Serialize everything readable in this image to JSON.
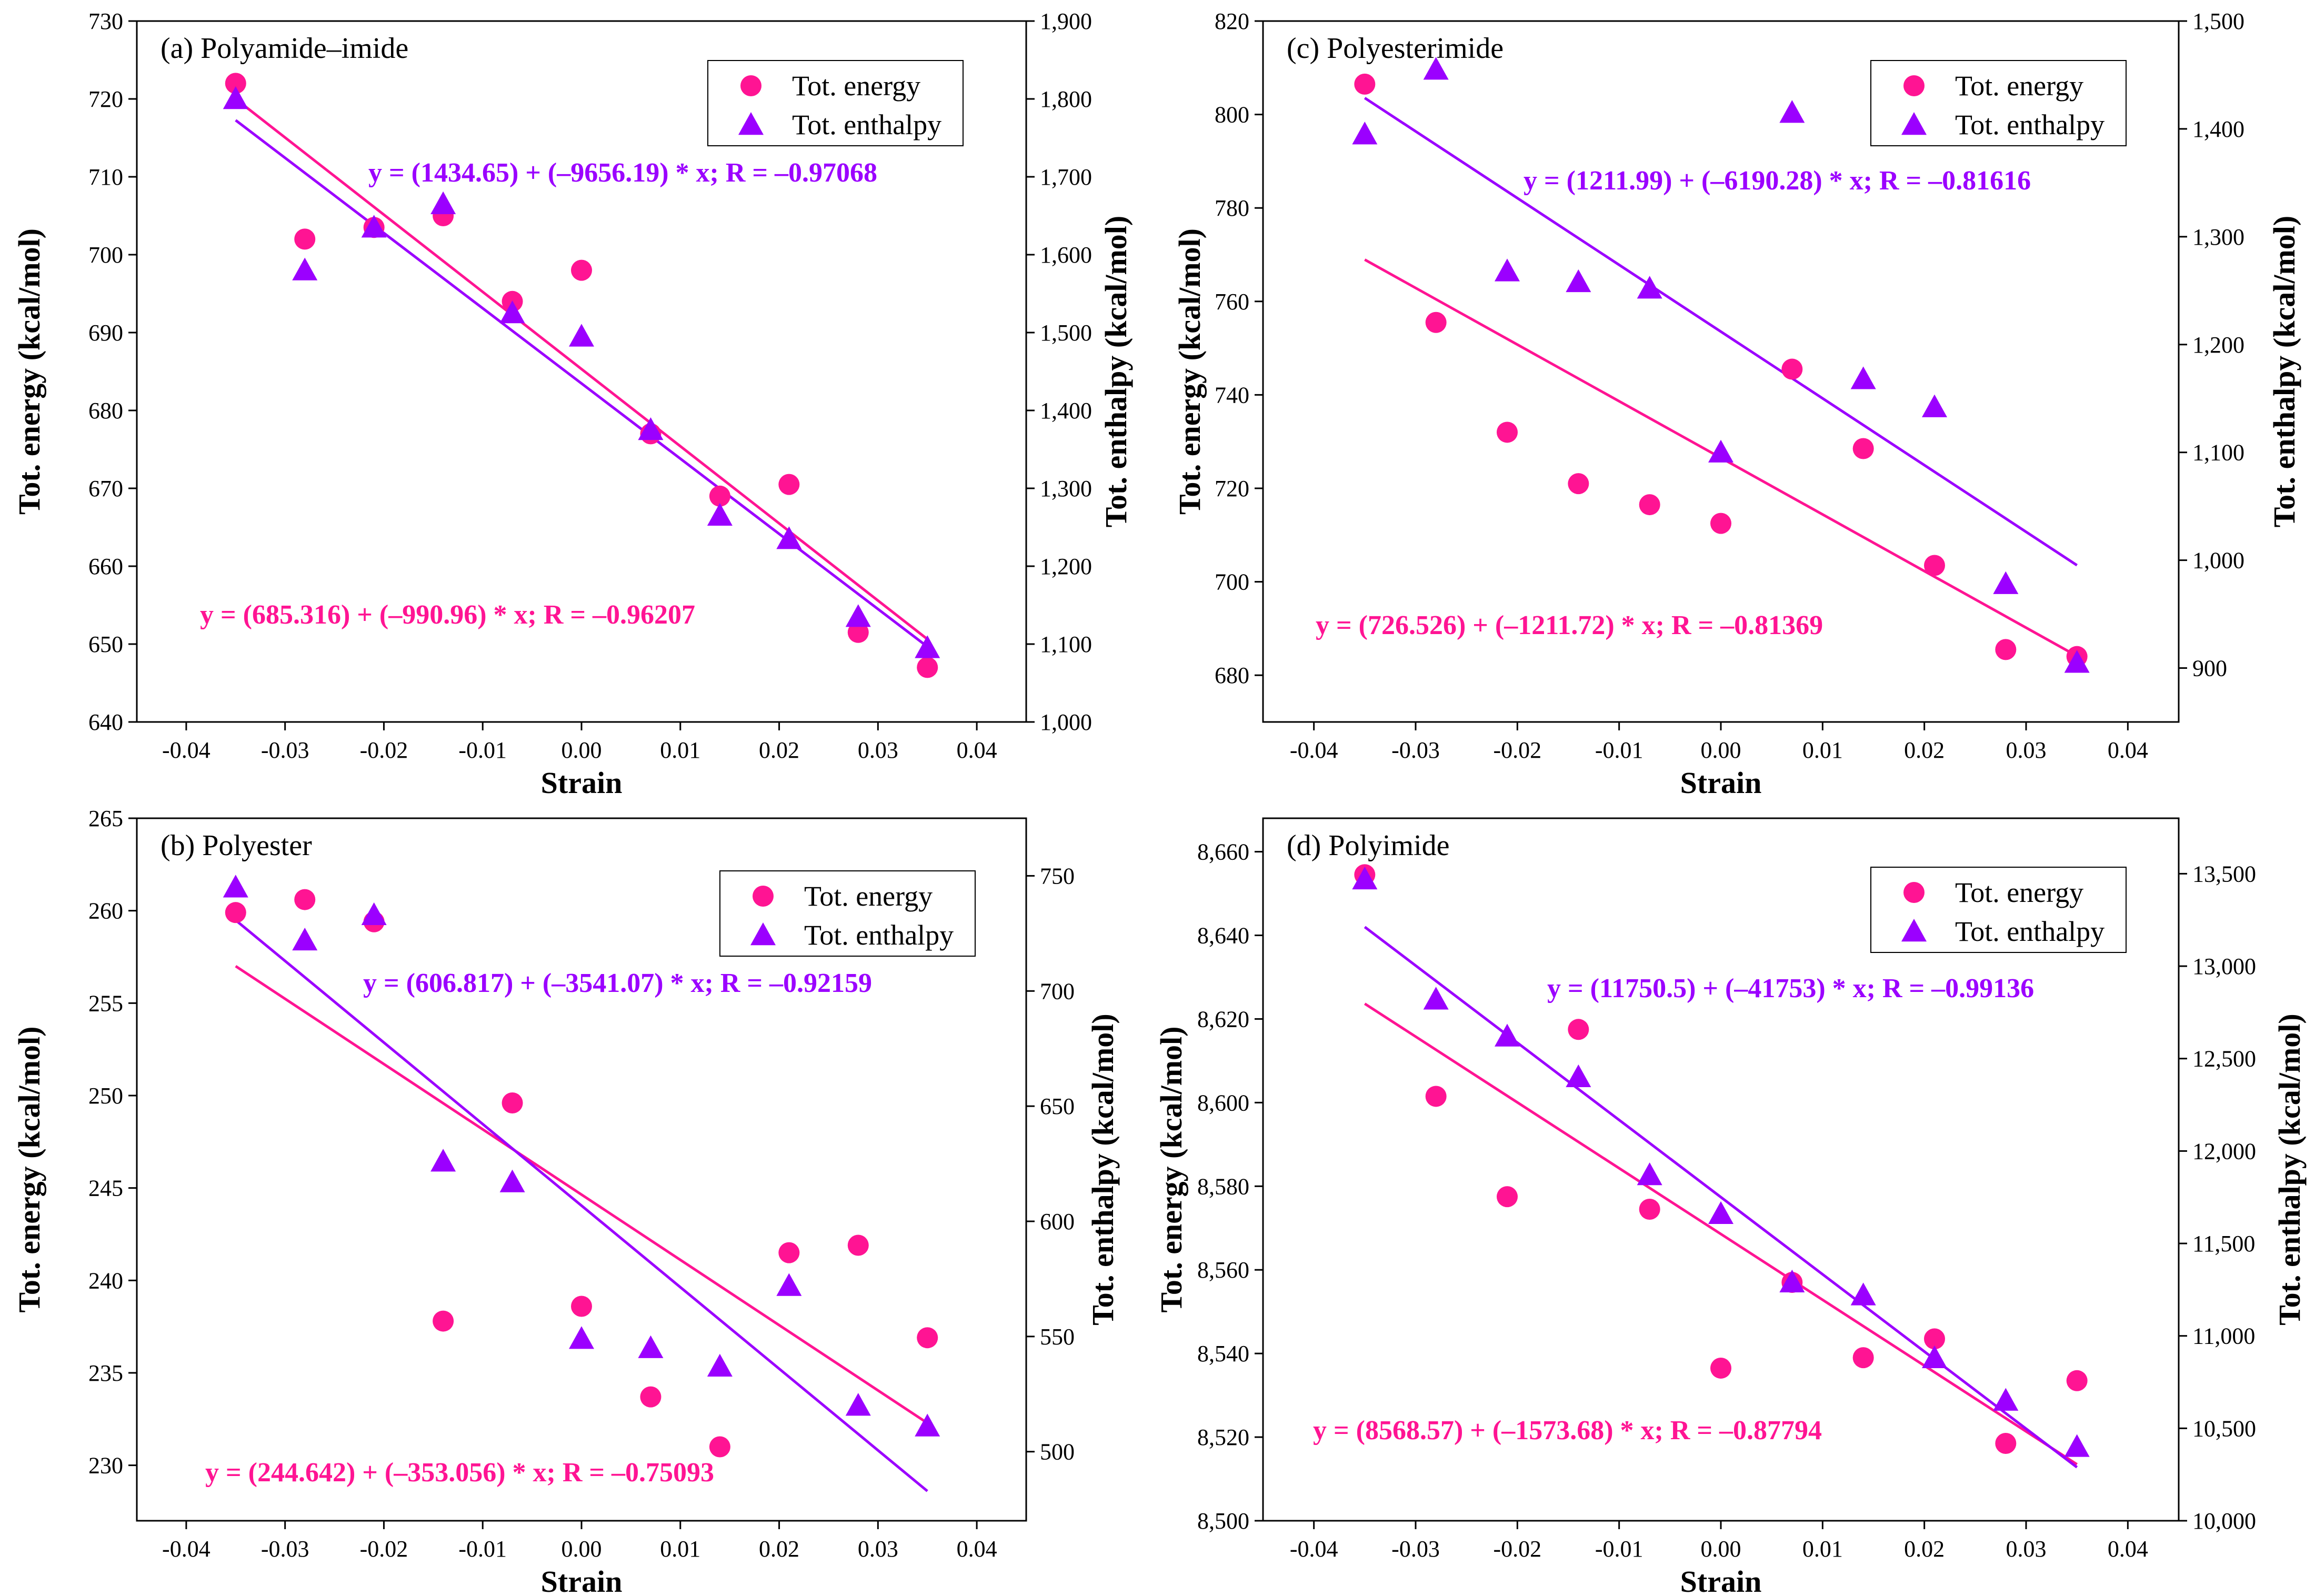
{
  "figure": {
    "colors": {
      "energy": "#ff1493",
      "enthalpy": "#9b00ff",
      "axis": "#000000"
    },
    "legend": {
      "energy": "Tot. energy",
      "enthalpy": "Tot. enthalpy",
      "placement": "top-right"
    }
  },
  "chart_data": [
    {
      "id": "a",
      "type": "scatter",
      "title": "(a) Polyamide–imide",
      "xlabel": "Strain",
      "ylabel": "Tot. energy (kcal/mol)",
      "y2label": "Tot. enthalpy (kcal/mol)",
      "xlim": [
        -0.045,
        0.045
      ],
      "ylim": [
        640,
        730
      ],
      "y2lim": [
        1000,
        1900
      ],
      "xticks": [
        -0.04,
        -0.03,
        -0.02,
        -0.01,
        0,
        0.01,
        0.02,
        0.03,
        0.04
      ],
      "xtick_labels": [
        "-0.04",
        "-0.03",
        "-0.02",
        "-0.01",
        "0.00",
        "0.01",
        "0.02",
        "0.03",
        "0.04"
      ],
      "yticks": [
        640,
        650,
        660,
        670,
        680,
        690,
        700,
        710,
        720,
        730
      ],
      "ytick_labels": [
        "640",
        "650",
        "660",
        "670",
        "680",
        "690",
        "700",
        "710",
        "720",
        "730"
      ],
      "y2ticks": [
        1000,
        1100,
        1200,
        1300,
        1400,
        1500,
        1600,
        1700,
        1800,
        1900
      ],
      "y2tick_labels": [
        "1,000",
        "1,100",
        "1,200",
        "1,300",
        "1,400",
        "1,500",
        "1,600",
        "1,700",
        "1,800",
        "1,900"
      ],
      "x": [
        -0.035,
        -0.028,
        -0.021,
        -0.014,
        -0.007,
        0.0,
        0.007,
        0.014,
        0.021,
        0.028,
        0.035
      ],
      "series": [
        {
          "name": "Tot. energy",
          "axis": "left",
          "marker": "circle",
          "values": [
            722,
            702,
            703.5,
            705,
            694,
            698,
            677,
            669,
            670.5,
            651.5,
            647
          ]
        },
        {
          "name": "Tot. enthalpy",
          "axis": "right",
          "marker": "triangle",
          "values": [
            1800,
            1580,
            1635,
            1665,
            1525,
            1495,
            1375,
            1265,
            1235,
            1135,
            1095
          ]
        }
      ],
      "fits": [
        {
          "series": "Tot. energy",
          "axis": "left",
          "intercept": 685.316,
          "slope": -990.96,
          "range": [
            -0.035,
            0.035
          ],
          "label": "y = (685.316) + (–990.96) * x; R = –0.96207"
        },
        {
          "series": "Tot. enthalpy",
          "axis": "right",
          "intercept": 1434.65,
          "slope": -9656.19,
          "range": [
            -0.035,
            0.035
          ],
          "label": "y = (1434.65) + (–9656.19) * x; R = –0.97068"
        }
      ]
    },
    {
      "id": "c",
      "type": "scatter",
      "title": "(c) Polyesterimide",
      "xlabel": "Strain",
      "ylabel": "Tot. energy (kcal/mol)",
      "y2label": "Tot. enthalpy (kcal/mol)",
      "xlim": [
        -0.045,
        0.045
      ],
      "ylim": [
        670,
        820
      ],
      "y2lim": [
        850,
        1500
      ],
      "xticks": [
        -0.04,
        -0.03,
        -0.02,
        -0.01,
        0,
        0.01,
        0.02,
        0.03,
        0.04
      ],
      "xtick_labels": [
        "-0.04",
        "-0.03",
        "-0.02",
        "-0.01",
        "0.00",
        "0.01",
        "0.02",
        "0.03",
        "0.04"
      ],
      "yticks": [
        680,
        700,
        720,
        740,
        760,
        780,
        800,
        820
      ],
      "ytick_labels": [
        "680",
        "700",
        "720",
        "740",
        "760",
        "780",
        "800",
        "820"
      ],
      "y2ticks": [
        900,
        1000,
        1100,
        1200,
        1300,
        1400,
        1500
      ],
      "y2tick_labels": [
        "900",
        "1,000",
        "1,100",
        "1,200",
        "1,300",
        "1,400",
        "1,500"
      ],
      "x": [
        -0.035,
        -0.028,
        -0.021,
        -0.014,
        -0.007,
        0.0,
        0.007,
        0.014,
        0.021,
        0.028,
        0.035
      ],
      "series": [
        {
          "name": "Tot. energy",
          "axis": "left",
          "marker": "circle",
          "values": [
            806.5,
            755.5,
            732,
            721,
            716.5,
            712.5,
            745.5,
            728.5,
            703.5,
            685.5,
            684
          ]
        },
        {
          "name": "Tot. enthalpy",
          "axis": "right",
          "marker": "triangle",
          "values": [
            1395,
            1455,
            1268,
            1258,
            1252,
            1100,
            1415,
            1168,
            1142,
            978,
            905
          ]
        }
      ],
      "fits": [
        {
          "series": "Tot. energy",
          "axis": "left",
          "intercept": 726.526,
          "slope": -1211.72,
          "range": [
            -0.035,
            0.035
          ],
          "label": "y = (726.526) + (–1211.72) * x; R = –0.81369"
        },
        {
          "series": "Tot. enthalpy",
          "axis": "right",
          "intercept": 1211.99,
          "slope": -6190.28,
          "range": [
            -0.035,
            0.035
          ],
          "label": "y = (1211.99) + (–6190.28) * x; R = –0.81616"
        }
      ]
    },
    {
      "id": "b",
      "type": "scatter",
      "title": "(b) Polyester",
      "xlabel": "Strain",
      "ylabel": "Tot. energy (kcal/mol)",
      "y2label": "Tot. enthalpy (kcal/mol)",
      "xlim": [
        -0.045,
        0.045
      ],
      "ylim": [
        227,
        265
      ],
      "y2lim": [
        470,
        775
      ],
      "xticks": [
        -0.04,
        -0.03,
        -0.02,
        -0.01,
        0,
        0.01,
        0.02,
        0.03,
        0.04
      ],
      "xtick_labels": [
        "-0.04",
        "-0.03",
        "-0.02",
        "-0.01",
        "0.00",
        "0.01",
        "0.02",
        "0.03",
        "0.04"
      ],
      "yticks": [
        230,
        235,
        240,
        245,
        250,
        255,
        260,
        265
      ],
      "ytick_labels": [
        "230",
        "235",
        "240",
        "245",
        "250",
        "255",
        "260",
        "265"
      ],
      "y2ticks": [
        500,
        550,
        600,
        650,
        700,
        750
      ],
      "y2tick_labels": [
        "500",
        "550",
        "600",
        "650",
        "700",
        "750"
      ],
      "x": [
        -0.035,
        -0.028,
        -0.021,
        -0.014,
        -0.007,
        0.0,
        0.007,
        0.014,
        0.021,
        0.028,
        0.035
      ],
      "series": [
        {
          "name": "Tot. energy",
          "axis": "left",
          "marker": "circle",
          "values": [
            259.9,
            260.6,
            259.4,
            237.8,
            249.6,
            238.6,
            233.7,
            231.0,
            241.5,
            241.9,
            236.9
          ]
        },
        {
          "name": "Tot. enthalpy",
          "axis": "right",
          "marker": "triangle",
          "values": [
            745,
            722,
            733,
            626,
            617,
            549,
            545,
            537,
            572,
            520,
            511
          ]
        }
      ],
      "fits": [
        {
          "series": "Tot. energy",
          "axis": "left",
          "intercept": 244.642,
          "slope": -353.056,
          "range": [
            -0.035,
            0.035
          ],
          "label": "y = (244.642) + (–353.056) * x; R = –0.75093"
        },
        {
          "series": "Tot. enthalpy",
          "axis": "right",
          "intercept": 606.817,
          "slope": -3541.07,
          "range": [
            -0.035,
            0.035
          ],
          "label": "y = (606.817) + (–3541.07) * x; R = –0.92159"
        }
      ]
    },
    {
      "id": "d",
      "type": "scatter",
      "title": "(d) Polyimide",
      "xlabel": "Strain",
      "ylabel": "Tot. energy (kcal/mol)",
      "y2label": "Tot. enthalpy (kcal/mol)",
      "xlim": [
        -0.045,
        0.045
      ],
      "ylim": [
        8500,
        8668
      ],
      "y2lim": [
        10000,
        13800
      ],
      "xticks": [
        -0.04,
        -0.03,
        -0.02,
        -0.01,
        0,
        0.01,
        0.02,
        0.03,
        0.04
      ],
      "xtick_labels": [
        "-0.04",
        "-0.03",
        "-0.02",
        "-0.01",
        "0.00",
        "0.01",
        "0.02",
        "0.03",
        "0.04"
      ],
      "yticks": [
        8500,
        8520,
        8540,
        8560,
        8580,
        8600,
        8620,
        8640,
        8660
      ],
      "ytick_labels": [
        "8,500",
        "8,520",
        "8,540",
        "8,560",
        "8,580",
        "8,600",
        "8,620",
        "8,640",
        "8,660"
      ],
      "y2ticks": [
        10000,
        10500,
        11000,
        11500,
        12000,
        12500,
        13000,
        13500
      ],
      "y2tick_labels": [
        "10,000",
        "10,500",
        "11,000",
        "11,500",
        "12,000",
        "12,500",
        "13,000",
        "13,500"
      ],
      "x": [
        -0.035,
        -0.028,
        -0.021,
        -0.014,
        -0.007,
        0.0,
        0.007,
        0.014,
        0.021,
        0.028,
        0.035
      ],
      "series": [
        {
          "name": "Tot. energy",
          "axis": "left",
          "marker": "circle",
          "values": [
            8654.5,
            8601.5,
            8577.5,
            8617.5,
            8574.5,
            8536.5,
            8557,
            8539,
            8543.5,
            8518.5,
            8533.5
          ]
        },
        {
          "name": "Tot. enthalpy",
          "axis": "right",
          "marker": "triangle",
          "values": [
            13470,
            12820,
            12620,
            12400,
            11870,
            11660,
            11290,
            11220,
            10880,
            10650,
            10400
          ]
        }
      ],
      "fits": [
        {
          "series": "Tot. energy",
          "axis": "left",
          "intercept": 8568.57,
          "slope": -1573.68,
          "range": [
            -0.035,
            0.035
          ],
          "label": "y = (8568.57) + (–1573.68) * x; R = –0.87794"
        },
        {
          "series": "Tot. enthalpy",
          "axis": "right",
          "intercept": 11750.5,
          "slope": -41753,
          "range": [
            -0.035,
            0.035
          ],
          "label": "y = (11750.5) + (–41753) * x; R = –0.99136"
        }
      ]
    }
  ]
}
